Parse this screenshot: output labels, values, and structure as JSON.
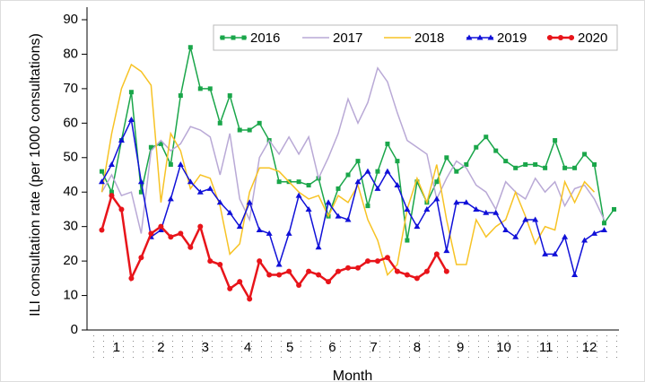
{
  "chart_data": {
    "type": "line",
    "y_label": "ILI consultation rate (per 1000 consultations)",
    "x_label": "Month",
    "x": [
      1,
      2,
      3,
      4,
      5,
      6,
      7,
      8,
      9,
      10,
      11,
      12,
      13,
      14,
      15,
      16,
      17,
      18,
      19,
      20,
      21,
      22,
      23,
      24,
      25,
      26,
      27,
      28,
      29,
      30,
      31,
      32,
      33,
      34,
      35,
      36,
      37,
      38,
      39,
      40,
      41,
      42,
      43,
      44,
      45,
      46,
      47,
      48,
      49,
      50,
      51,
      52,
      53
    ],
    "xlim": [
      -0.5,
      53.5
    ],
    "xticks": [
      {
        "value": 2.5,
        "label": "1"
      },
      {
        "value": 7,
        "label": "2"
      },
      {
        "value": 11.5,
        "label": "3"
      },
      {
        "value": 15.8,
        "label": "4"
      },
      {
        "value": 20.1,
        "label": "5"
      },
      {
        "value": 24.4,
        "label": "6"
      },
      {
        "value": 28.6,
        "label": "7"
      },
      {
        "value": 33,
        "label": "8"
      },
      {
        "value": 37.4,
        "label": "9"
      },
      {
        "value": 41.8,
        "label": "10"
      },
      {
        "value": 46.1,
        "label": "11"
      },
      {
        "value": 50.5,
        "label": "12"
      }
    ],
    "ylim": [
      0,
      90
    ],
    "yticks": [
      0,
      10,
      20,
      30,
      40,
      50,
      60,
      70,
      80,
      90
    ],
    "grid": false,
    "legend": "top-right",
    "series": [
      {
        "name": "2016",
        "color": "#1aa64a",
        "marker": "square",
        "values": [
          46,
          40,
          55,
          69,
          40,
          53,
          54,
          48,
          68,
          82,
          70,
          70,
          60,
          68,
          58,
          58,
          60,
          55,
          43,
          43,
          43,
          42,
          44,
          33,
          41,
          45,
          49,
          36,
          46,
          54,
          49,
          26,
          43,
          37,
          43,
          50,
          46,
          48,
          53,
          56,
          52,
          49,
          47,
          48,
          48,
          47,
          55,
          47,
          47,
          51,
          48,
          31,
          35
        ]
      },
      {
        "name": "2017",
        "color": "#b9a9d6",
        "marker": "none",
        "values": [
          40,
          45,
          39,
          40,
          28,
          52,
          55,
          52,
          54,
          59,
          58,
          56,
          45,
          57,
          38,
          32,
          50,
          55,
          51,
          56,
          51,
          56,
          44,
          50,
          57,
          67,
          60,
          66,
          76,
          72,
          63,
          55,
          53,
          51,
          38,
          44,
          49,
          47,
          42,
          40,
          35,
          43,
          40,
          38,
          44,
          40,
          43,
          36,
          41,
          42,
          38,
          32,
          null
        ]
      },
      {
        "name": "2018",
        "color": "#f7c325",
        "marker": "none",
        "values": [
          40,
          57,
          70,
          77,
          75,
          71,
          37,
          57,
          52,
          41,
          45,
          44,
          36,
          22,
          25,
          40,
          47,
          47,
          46,
          43,
          40,
          38,
          39,
          33,
          39,
          37,
          42,
          32,
          26,
          16,
          19,
          35,
          44,
          37,
          48,
          32,
          19,
          19,
          32,
          27,
          30,
          32,
          40,
          33,
          25,
          30,
          29,
          43,
          37,
          43,
          40,
          null,
          null
        ]
      },
      {
        "name": "2019",
        "color": "#1010d8",
        "marker": "triangle",
        "values": [
          43,
          48,
          55,
          61,
          43,
          27,
          29,
          38,
          48,
          43,
          40,
          41,
          37,
          34,
          30,
          37,
          29,
          28,
          19,
          28,
          39,
          35,
          24,
          37,
          33,
          32,
          43,
          46,
          41,
          46,
          42,
          35,
          30,
          35,
          38,
          23,
          37,
          37,
          35,
          34,
          34,
          29,
          27,
          32,
          32,
          22,
          22,
          27,
          16,
          26,
          28,
          29,
          null
        ]
      },
      {
        "name": "2020",
        "color": "#e8141a",
        "marker": "circle",
        "values": [
          29,
          39,
          35,
          15,
          21,
          28,
          30,
          27,
          28,
          24,
          30,
          20,
          19,
          12,
          14,
          9,
          20,
          16,
          16,
          17,
          13,
          17,
          16,
          14,
          17,
          18,
          18,
          20,
          20,
          21,
          17,
          16,
          15,
          17,
          22,
          17,
          null,
          null,
          null,
          null,
          null,
          null,
          null,
          null,
          null,
          null,
          null,
          null,
          null,
          null,
          null,
          null,
          null
        ]
      }
    ]
  }
}
